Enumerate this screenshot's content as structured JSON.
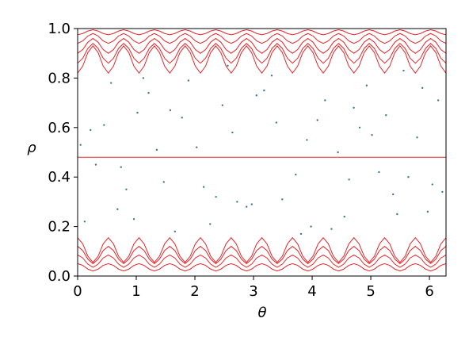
{
  "chart_data": {
    "type": "line",
    "xlabel": "θ",
    "ylabel": "ρ",
    "xlim": [
      0,
      6.283
    ],
    "ylim": [
      0,
      1
    ],
    "xticks": [
      0,
      1,
      2,
      3,
      4,
      5,
      6
    ],
    "yticks": [
      {
        "value": 0,
        "label": "0.0"
      },
      {
        "value": 0.2,
        "label": "0.2"
      },
      {
        "value": 0.4,
        "label": "0.4"
      },
      {
        "value": 0.6,
        "label": "0.6"
      },
      {
        "value": 0.8,
        "label": "0.8"
      },
      {
        "value": 1,
        "label": "1.0"
      }
    ],
    "points": {
      "color": "#3f7a8c",
      "x": [
        0.12,
        0.45,
        0.83,
        1.21,
        1.66,
        2.03,
        2.47,
        2.88,
        3.31,
        3.72,
        4.09,
        4.55,
        4.93,
        5.38,
        5.79,
        6.15,
        0.31,
        0.68,
        1.02,
        1.47,
        1.89,
        2.26,
        2.64,
        3.05,
        3.49,
        3.91,
        4.33,
        4.71,
        5.14,
        5.56,
        5.97,
        0.22,
        0.57,
        0.96,
        1.35,
        1.78,
        2.15,
        2.56,
        2.97,
        3.39,
        3.81,
        4.22,
        4.63,
        5.02,
        5.45,
        5.88,
        6.22,
        0.05,
        0.74,
        1.58,
        2.36,
        3.18,
        3.98,
        4.81,
        5.64,
        1.12,
        2.72,
        4.44,
        5.26,
        6.05
      ],
      "y": [
        0.22,
        0.61,
        0.35,
        0.74,
        0.18,
        0.52,
        0.69,
        0.28,
        0.81,
        0.41,
        0.63,
        0.24,
        0.77,
        0.33,
        0.56,
        0.71,
        0.45,
        0.27,
        0.66,
        0.38,
        0.79,
        0.21,
        0.58,
        0.73,
        0.31,
        0.55,
        0.19,
        0.68,
        0.42,
        0.83,
        0.26,
        0.59,
        0.78,
        0.23,
        0.51,
        0.64,
        0.36,
        0.85,
        0.29,
        0.62,
        0.17,
        0.71,
        0.39,
        0.57,
        0.25,
        0.76,
        0.34,
        0.53,
        0.44,
        0.67,
        0.32,
        0.75,
        0.2,
        0.6,
        0.4,
        0.8,
        0.3,
        0.5,
        0.65,
        0.37
      ]
    },
    "x": [
      0,
      0.087,
      0.175,
      0.262,
      0.349,
      0.436,
      0.524,
      0.611,
      0.698,
      0.785,
      0.873,
      0.96,
      1.047,
      1.134,
      1.222,
      1.309,
      1.396,
      1.484,
      1.571,
      1.658,
      1.745,
      1.833,
      1.92,
      2.007,
      2.094,
      2.182,
      2.269,
      2.356,
      2.443,
      2.531,
      2.618,
      2.705,
      2.793,
      2.88,
      2.967,
      3.054,
      3.142,
      3.229,
      3.316,
      3.403,
      3.491,
      3.578,
      3.665,
      3.752,
      3.84,
      3.927,
      4.014,
      4.102,
      4.189,
      4.276,
      4.363,
      4.451,
      4.538,
      4.625,
      4.712,
      4.8,
      4.887,
      4.974,
      5.061,
      5.149,
      5.236,
      5.323,
      5.411,
      5.498,
      5.585,
      5.672,
      5.76,
      5.847,
      5.934,
      6.021,
      6.109,
      6.196,
      6.283
    ],
    "series": [
      {
        "color": "#e8262a",
        "values": [
          0.82,
          0.848,
          0.903,
          0.93,
          0.903,
          0.848,
          0.82,
          0.848,
          0.903,
          0.93,
          0.903,
          0.848,
          0.82,
          0.848,
          0.903,
          0.93,
          0.903,
          0.848,
          0.82,
          0.848,
          0.903,
          0.93,
          0.903,
          0.848,
          0.82,
          0.848,
          0.903,
          0.93,
          0.903,
          0.848,
          0.82,
          0.848,
          0.903,
          0.93,
          0.903,
          0.848,
          0.82,
          0.848,
          0.903,
          0.93,
          0.903,
          0.848,
          0.82,
          0.848,
          0.903,
          0.93,
          0.903,
          0.848,
          0.82,
          0.848,
          0.903,
          0.93,
          0.903,
          0.848,
          0.82,
          0.848,
          0.903,
          0.93,
          0.903,
          0.848,
          0.82,
          0.848,
          0.903,
          0.93,
          0.903,
          0.848,
          0.82,
          0.848,
          0.903,
          0.93,
          0.903,
          0.848,
          0.82
        ]
      },
      {
        "color": "#e8262a",
        "values": [
          0.86,
          0.88,
          0.92,
          0.94,
          0.92,
          0.88,
          0.86,
          0.88,
          0.92,
          0.94,
          0.92,
          0.88,
          0.86,
          0.88,
          0.92,
          0.94,
          0.92,
          0.88,
          0.86,
          0.88,
          0.92,
          0.94,
          0.92,
          0.88,
          0.86,
          0.88,
          0.92,
          0.94,
          0.92,
          0.88,
          0.86,
          0.88,
          0.92,
          0.94,
          0.92,
          0.88,
          0.86,
          0.88,
          0.92,
          0.94,
          0.92,
          0.88,
          0.86,
          0.88,
          0.92,
          0.94,
          0.92,
          0.88,
          0.86,
          0.88,
          0.92,
          0.94,
          0.92,
          0.88,
          0.86,
          0.88,
          0.92,
          0.94,
          0.92,
          0.88,
          0.86,
          0.88,
          0.92,
          0.94,
          0.92,
          0.88,
          0.86,
          0.88,
          0.92,
          0.94,
          0.92,
          0.88,
          0.86
        ]
      },
      {
        "color": "#e8262a",
        "values": [
          0.9,
          0.915,
          0.945,
          0.96,
          0.945,
          0.915,
          0.9,
          0.915,
          0.945,
          0.96,
          0.945,
          0.915,
          0.9,
          0.915,
          0.945,
          0.96,
          0.945,
          0.915,
          0.9,
          0.915,
          0.945,
          0.96,
          0.945,
          0.915,
          0.9,
          0.915,
          0.945,
          0.96,
          0.945,
          0.915,
          0.9,
          0.915,
          0.945,
          0.96,
          0.945,
          0.915,
          0.9,
          0.915,
          0.945,
          0.96,
          0.945,
          0.915,
          0.9,
          0.915,
          0.945,
          0.96,
          0.945,
          0.915,
          0.9,
          0.915,
          0.945,
          0.96,
          0.945,
          0.915,
          0.9,
          0.915,
          0.945,
          0.96,
          0.945,
          0.915,
          0.9,
          0.915,
          0.945,
          0.96,
          0.945,
          0.915,
          0.9,
          0.915,
          0.945,
          0.96,
          0.945,
          0.915,
          0.9
        ]
      },
      {
        "color": "#e8262a",
        "values": [
          0.94,
          0.95,
          0.97,
          0.98,
          0.97,
          0.95,
          0.94,
          0.95,
          0.97,
          0.98,
          0.97,
          0.95,
          0.94,
          0.95,
          0.97,
          0.98,
          0.97,
          0.95,
          0.94,
          0.95,
          0.97,
          0.98,
          0.97,
          0.95,
          0.94,
          0.95,
          0.97,
          0.98,
          0.97,
          0.95,
          0.94,
          0.95,
          0.97,
          0.98,
          0.97,
          0.95,
          0.94,
          0.95,
          0.97,
          0.98,
          0.97,
          0.95,
          0.94,
          0.95,
          0.97,
          0.98,
          0.97,
          0.95,
          0.94,
          0.95,
          0.97,
          0.98,
          0.97,
          0.95,
          0.94,
          0.95,
          0.97,
          0.98,
          0.97,
          0.95,
          0.94,
          0.95,
          0.97,
          0.98,
          0.97,
          0.95,
          0.94,
          0.95,
          0.97,
          0.98,
          0.97,
          0.95,
          0.94
        ]
      },
      {
        "color": "#e8262a",
        "values": [
          0.975,
          0.98,
          0.99,
          0.995,
          0.99,
          0.98,
          0.975,
          0.98,
          0.99,
          0.995,
          0.99,
          0.98,
          0.975,
          0.98,
          0.99,
          0.995,
          0.99,
          0.98,
          0.975,
          0.98,
          0.99,
          0.995,
          0.99,
          0.98,
          0.975,
          0.98,
          0.99,
          0.995,
          0.99,
          0.98,
          0.975,
          0.98,
          0.99,
          0.995,
          0.99,
          0.98,
          0.975,
          0.98,
          0.99,
          0.995,
          0.99,
          0.98,
          0.975,
          0.98,
          0.99,
          0.995,
          0.99,
          0.98,
          0.975,
          0.98,
          0.99,
          0.995,
          0.99,
          0.98,
          0.975,
          0.98,
          0.99,
          0.995,
          0.99,
          0.98,
          0.975,
          0.98,
          0.99,
          0.995,
          0.99,
          0.98,
          0.975,
          0.98,
          0.99,
          0.995,
          0.99,
          0.98,
          0.975
        ]
      },
      {
        "color": "#e8262a",
        "values": [
          0.48,
          0.48,
          0.48,
          0.48,
          0.48,
          0.48,
          0.48,
          0.48,
          0.48,
          0.48,
          0.48,
          0.48,
          0.48,
          0.48,
          0.48,
          0.48,
          0.48,
          0.48,
          0.48,
          0.48,
          0.48,
          0.48,
          0.48,
          0.48,
          0.48,
          0.48,
          0.48,
          0.48,
          0.48,
          0.48,
          0.48,
          0.48,
          0.48,
          0.48,
          0.48,
          0.48,
          0.48,
          0.48,
          0.48,
          0.48,
          0.48,
          0.48,
          0.48,
          0.48,
          0.48,
          0.48,
          0.48,
          0.48,
          0.48,
          0.48,
          0.48,
          0.48,
          0.48,
          0.48,
          0.48,
          0.48,
          0.48,
          0.48,
          0.48,
          0.48,
          0.48,
          0.48,
          0.48,
          0.48,
          0.48,
          0.48,
          0.48,
          0.48,
          0.48,
          0.48,
          0.48,
          0.48,
          0.48
        ]
      },
      {
        "color": "#e8262a",
        "values": [
          0.155,
          0.13,
          0.08,
          0.055,
          0.08,
          0.13,
          0.155,
          0.13,
          0.08,
          0.055,
          0.08,
          0.13,
          0.155,
          0.13,
          0.08,
          0.055,
          0.08,
          0.13,
          0.155,
          0.13,
          0.08,
          0.055,
          0.08,
          0.13,
          0.155,
          0.13,
          0.08,
          0.055,
          0.08,
          0.13,
          0.155,
          0.13,
          0.08,
          0.055,
          0.08,
          0.13,
          0.155,
          0.13,
          0.08,
          0.055,
          0.08,
          0.13,
          0.155,
          0.13,
          0.08,
          0.055,
          0.08,
          0.13,
          0.155,
          0.13,
          0.08,
          0.055,
          0.08,
          0.13,
          0.155,
          0.13,
          0.08,
          0.055,
          0.08,
          0.13,
          0.155,
          0.13,
          0.08,
          0.055,
          0.08,
          0.13,
          0.155,
          0.13,
          0.08,
          0.055,
          0.08,
          0.13,
          0.155
        ]
      },
      {
        "color": "#e8262a",
        "values": [
          0.12,
          0.103,
          0.068,
          0.05,
          0.068,
          0.103,
          0.12,
          0.103,
          0.068,
          0.05,
          0.068,
          0.103,
          0.12,
          0.103,
          0.068,
          0.05,
          0.068,
          0.103,
          0.12,
          0.103,
          0.068,
          0.05,
          0.068,
          0.103,
          0.12,
          0.103,
          0.068,
          0.05,
          0.068,
          0.103,
          0.12,
          0.103,
          0.068,
          0.05,
          0.068,
          0.103,
          0.12,
          0.103,
          0.068,
          0.05,
          0.068,
          0.103,
          0.12,
          0.103,
          0.068,
          0.05,
          0.068,
          0.103,
          0.12,
          0.103,
          0.068,
          0.05,
          0.068,
          0.103,
          0.12,
          0.103,
          0.068,
          0.05,
          0.068,
          0.103,
          0.12,
          0.103,
          0.068,
          0.05,
          0.068,
          0.103,
          0.12,
          0.103,
          0.068,
          0.05,
          0.068,
          0.103,
          0.12
        ]
      },
      {
        "color": "#e8262a",
        "values": [
          0.085,
          0.073,
          0.048,
          0.035,
          0.048,
          0.073,
          0.085,
          0.073,
          0.048,
          0.035,
          0.048,
          0.073,
          0.085,
          0.073,
          0.048,
          0.035,
          0.048,
          0.073,
          0.085,
          0.073,
          0.048,
          0.035,
          0.048,
          0.073,
          0.085,
          0.073,
          0.048,
          0.035,
          0.048,
          0.073,
          0.085,
          0.073,
          0.048,
          0.035,
          0.048,
          0.073,
          0.085,
          0.073,
          0.048,
          0.035,
          0.048,
          0.073,
          0.085,
          0.073,
          0.048,
          0.035,
          0.048,
          0.073,
          0.085,
          0.073,
          0.048,
          0.035,
          0.048,
          0.073,
          0.085,
          0.073,
          0.048,
          0.035,
          0.048,
          0.073,
          0.085,
          0.073,
          0.048,
          0.035,
          0.048,
          0.073,
          0.085,
          0.073,
          0.048,
          0.035,
          0.048,
          0.073,
          0.085
        ]
      },
      {
        "color": "#e8262a",
        "values": [
          0.05,
          0.043,
          0.028,
          0.02,
          0.028,
          0.043,
          0.05,
          0.043,
          0.028,
          0.02,
          0.028,
          0.043,
          0.05,
          0.043,
          0.028,
          0.02,
          0.028,
          0.043,
          0.05,
          0.043,
          0.028,
          0.02,
          0.028,
          0.043,
          0.05,
          0.043,
          0.028,
          0.02,
          0.028,
          0.043,
          0.05,
          0.043,
          0.028,
          0.02,
          0.028,
          0.043,
          0.05,
          0.043,
          0.028,
          0.02,
          0.028,
          0.043,
          0.05,
          0.043,
          0.028,
          0.02,
          0.028,
          0.043,
          0.05,
          0.043,
          0.028,
          0.02,
          0.028,
          0.043,
          0.05,
          0.043,
          0.028,
          0.02,
          0.028,
          0.043,
          0.05,
          0.043,
          0.028,
          0.02,
          0.028,
          0.043,
          0.05,
          0.043,
          0.028,
          0.02,
          0.028,
          0.043,
          0.05
        ]
      }
    ]
  }
}
